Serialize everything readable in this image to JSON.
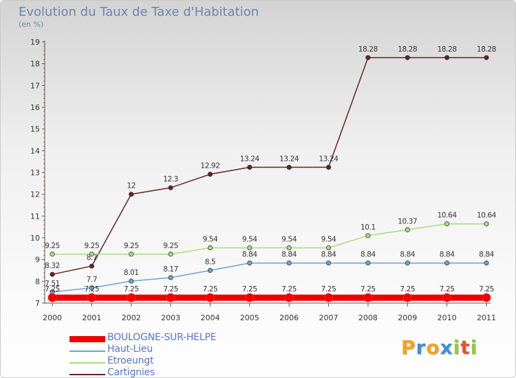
{
  "header": {
    "title": "Evolution du Taux de Taxe d'Habitation",
    "subtitle": "(en %)"
  },
  "brand": {
    "letters": [
      "P",
      "r",
      "o",
      "x",
      "i",
      "t",
      "i"
    ],
    "colors": [
      "#f2a31b",
      "#3a8fd8",
      "#f2a31b",
      "#3a8fd8",
      "#9ac53c",
      "#e2562f",
      "#9ac53c"
    ]
  },
  "chart_data": {
    "type": "line",
    "x": [
      "2000",
      "2001",
      "2002",
      "2003",
      "2004",
      "2005",
      "2006",
      "2007",
      "2008",
      "2009",
      "2010",
      "2011"
    ],
    "ylim": [
      7,
      19
    ],
    "yticks": [
      "7",
      "8",
      "9",
      "10",
      "11",
      "12",
      "13",
      "14",
      "15",
      "16",
      "17",
      "18",
      "19"
    ],
    "grid": false,
    "legend_position": "bottom-left",
    "series": [
      {
        "name": "Cartignies",
        "color": "#6b1f1f",
        "values": [
          8.32,
          8.7,
          12,
          12.3,
          12.92,
          13.24,
          13.24,
          13.24,
          18.28,
          18.28,
          18.28,
          18.28
        ],
        "labels": [
          "8.32",
          "8.7",
          "12",
          "12.3",
          "12.92",
          "13.24",
          "13.24",
          "13.24",
          "18.28",
          "18.28",
          "18.28",
          "18.28"
        ]
      },
      {
        "name": "Etroeungt",
        "color": "#a8dd7a",
        "values": [
          9.25,
          9.25,
          9.25,
          9.25,
          9.54,
          9.54,
          9.54,
          9.54,
          10.1,
          10.37,
          10.64,
          10.64
        ],
        "labels": [
          "9.25",
          "9.25",
          "9.25",
          "9.25",
          "9.54",
          "9.54",
          "9.54",
          "9.54",
          "10.1",
          "10.37",
          "10.64",
          "10.64"
        ]
      },
      {
        "name": "Haut-Lieu",
        "color": "#6aa3d5",
        "values": [
          7.51,
          7.7,
          8.01,
          8.17,
          8.5,
          8.84,
          8.84,
          8.84,
          8.84,
          8.84,
          8.84,
          8.84
        ],
        "labels": [
          "7.51",
          "7.7",
          "8.01",
          "8.17",
          "8.5",
          "8.84",
          "8.84",
          "8.84",
          "8.84",
          "8.84",
          "8.84",
          "8.84"
        ]
      },
      {
        "name": "BOULOGNE-SUR-HELPE",
        "color": "#ee0000",
        "values": [
          7.25,
          7.25,
          7.25,
          7.25,
          7.25,
          7.25,
          7.25,
          7.25,
          7.25,
          7.25,
          7.25,
          7.25
        ],
        "labels": [
          "7.25",
          "7.25",
          "7.25",
          "7.25",
          "7.25",
          "7.25",
          "7.25",
          "7.25",
          "7.25",
          "7.25",
          "7.25",
          "7.25"
        ]
      }
    ],
    "legend": [
      "BOULOGNE-SUR-HELPE",
      "Haut-Lieu",
      "Etroeungt",
      "Cartignies"
    ]
  }
}
